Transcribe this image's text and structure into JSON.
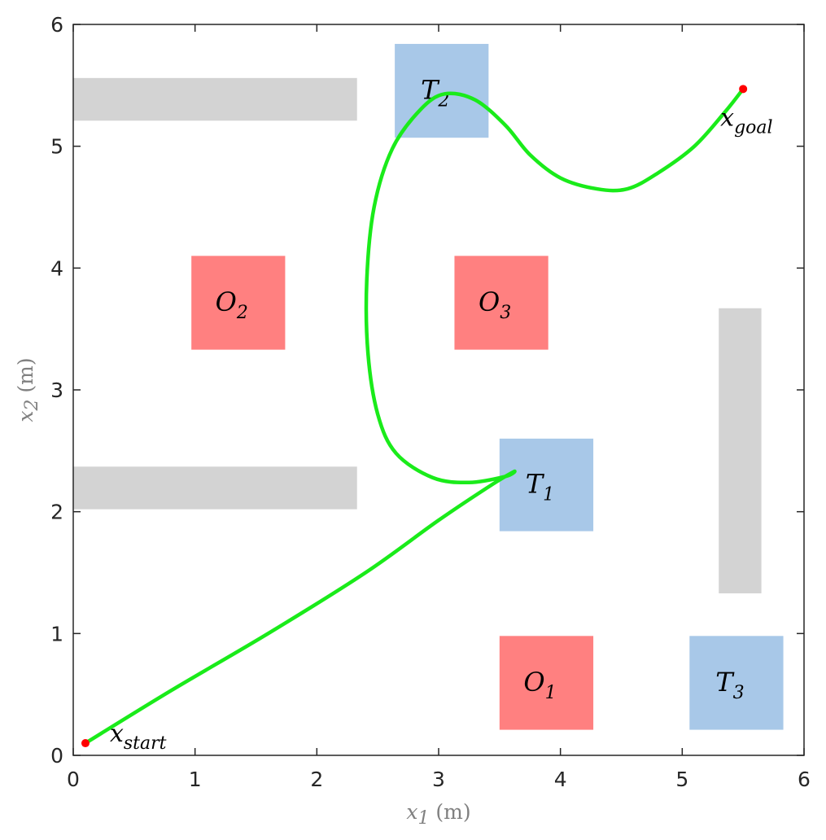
{
  "chart_data": {
    "type": "scatter",
    "xlabel": {
      "var": "x",
      "sub": "1",
      "unit": "(m)"
    },
    "ylabel": {
      "var": "x",
      "sub": "2",
      "unit": "(m)"
    },
    "xlim": [
      0,
      6
    ],
    "ylim": [
      0,
      6
    ],
    "xticks": [
      "0",
      "1",
      "2",
      "3",
      "4",
      "5",
      "6"
    ],
    "yticks": [
      "0",
      "1",
      "2",
      "3",
      "4",
      "5",
      "6"
    ],
    "grid": false,
    "colors": {
      "obstacle": "#ff8080",
      "target": "#a8c8e8",
      "wall": "#d3d3d3",
      "trajectory": "#1aeb1a",
      "endpoint": "#ff0000",
      "axis": "#262626"
    },
    "walls": [
      {
        "x": [
          0.0,
          2.33
        ],
        "y": [
          5.21,
          5.56
        ]
      },
      {
        "x": [
          0.0,
          2.33
        ],
        "y": [
          2.02,
          2.37
        ]
      },
      {
        "x": [
          5.3,
          5.65
        ],
        "y": [
          1.33,
          3.67
        ]
      }
    ],
    "regions": [
      {
        "kind": "target",
        "name": "T",
        "sub": "2",
        "x": [
          2.64,
          3.41
        ],
        "y": [
          5.07,
          5.84
        ]
      },
      {
        "kind": "target",
        "name": "T",
        "sub": "1",
        "x": [
          3.5,
          4.27
        ],
        "y": [
          1.84,
          2.6
        ]
      },
      {
        "kind": "target",
        "name": "T",
        "sub": "3",
        "x": [
          5.06,
          5.83
        ],
        "y": [
          0.21,
          0.98
        ]
      },
      {
        "kind": "obstacle",
        "name": "O",
        "sub": "2",
        "x": [
          0.97,
          1.74
        ],
        "y": [
          3.33,
          4.1
        ]
      },
      {
        "kind": "obstacle",
        "name": "O",
        "sub": "3",
        "x": [
          3.13,
          3.9
        ],
        "y": [
          3.33,
          4.1
        ]
      },
      {
        "kind": "obstacle",
        "name": "O",
        "sub": "1",
        "x": [
          3.5,
          4.27
        ],
        "y": [
          0.21,
          0.98
        ]
      }
    ],
    "trajectory": {
      "x": [
        0.1,
        0.8,
        1.6,
        2.4,
        3.0,
        3.45,
        3.62,
        3.55,
        3.25,
        2.95,
        2.65,
        2.5,
        2.42,
        2.41,
        2.47,
        2.62,
        2.85,
        3.05,
        3.3,
        3.55,
        3.75,
        4.0,
        4.3,
        4.55,
        4.8,
        5.1,
        5.35,
        5.5
      ],
      "y": [
        0.1,
        0.53,
        1.0,
        1.5,
        1.93,
        2.23,
        2.33,
        2.29,
        2.24,
        2.28,
        2.48,
        2.8,
        3.3,
        3.9,
        4.5,
        4.98,
        5.3,
        5.43,
        5.38,
        5.17,
        4.93,
        4.74,
        4.65,
        4.65,
        4.78,
        5.0,
        5.28,
        5.47
      ]
    },
    "points": [
      {
        "name": "start",
        "var": "x",
        "sub": "start",
        "x": 0.1,
        "y": 0.1
      },
      {
        "name": "goal",
        "var": "x",
        "sub": "goal",
        "x": 5.5,
        "y": 5.47
      }
    ]
  }
}
